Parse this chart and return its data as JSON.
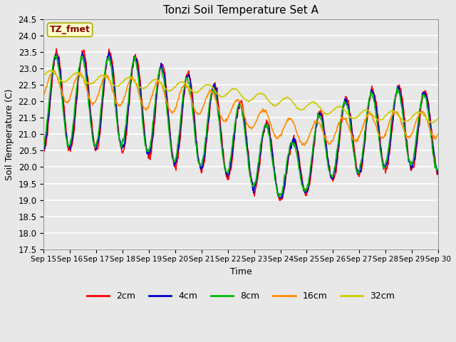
{
  "title": "Tonzi Soil Temperature Set A",
  "xlabel": "Time",
  "ylabel": "Soil Temperature (C)",
  "ylim": [
    17.5,
    24.5
  ],
  "annotation": "TZ_fmet",
  "colors": {
    "2cm": "#FF0000",
    "4cm": "#0000CC",
    "8cm": "#00BB00",
    "16cm": "#FF8C00",
    "32cm": "#CCCC00"
  },
  "legend_labels": [
    "2cm",
    "4cm",
    "8cm",
    "16cm",
    "32cm"
  ],
  "xtick_labels": [
    "Sep 15",
    "Sep 16",
    "Sep 17",
    "Sep 18",
    "Sep 19",
    "Sep 20",
    "Sep 21",
    "Sep 22",
    "Sep 23",
    "Sep 24",
    "Sep 25",
    "Sep 26",
    "Sep 27",
    "Sep 28",
    "Sep 29",
    "Sep 30"
  ],
  "fig_facecolor": "#E8E8E8",
  "plot_bg": "#E8E8E8",
  "linewidth": 1.2
}
